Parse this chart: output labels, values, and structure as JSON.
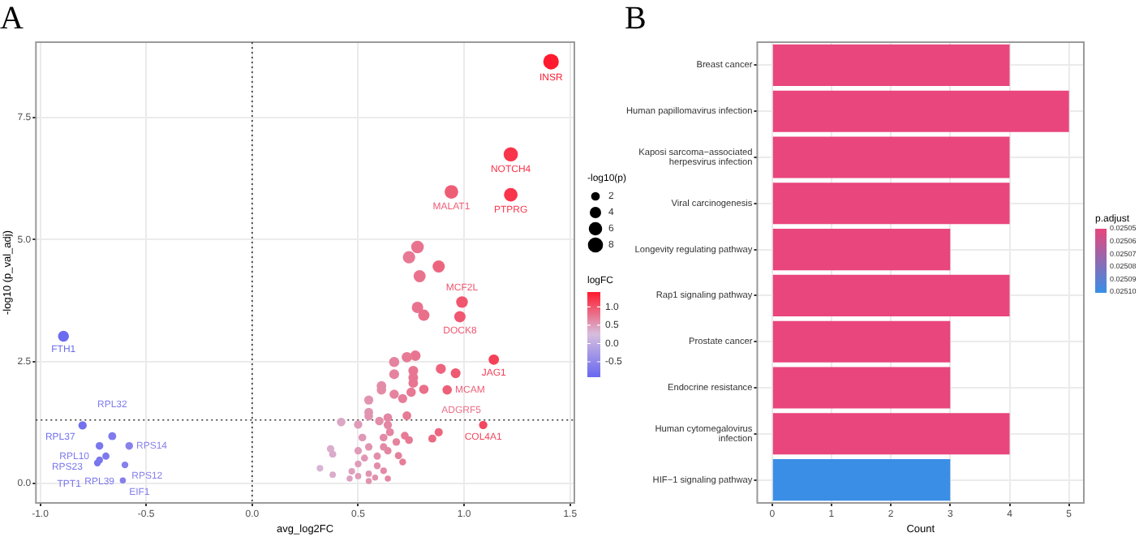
{
  "chart_data": [
    {
      "type": "bubble",
      "title": "A",
      "xlabel": "avg_log2FC",
      "ylabel": "-log10 (p_val_adj)",
      "legend_title": "-log10(p)",
      "clabel": "logFC",
      "x": [
        1.41,
        1.22,
        1.22,
        0.94,
        0.78,
        0.74,
        0.88,
        0.79,
        0.99,
        0.78,
        0.81,
        0.98,
        -0.89,
        1.14,
        0.77,
        0.73,
        0.67,
        0.89,
        0.96,
        0.76,
        0.67,
        0.76,
        0.76,
        0.61,
        0.61,
        0.81,
        0.92,
        0.75,
        0.67,
        0.71,
        0.55,
        0.55,
        0.55,
        0.73,
        0.64,
        0.42,
        0.5,
        -0.8,
        0.6,
        1.09,
        0.88,
        0.85,
        -0.66,
        -0.72,
        -0.69,
        -0.58,
        -0.72,
        -0.73,
        -0.6,
        -0.61,
        0.37,
        0.38,
        0.32,
        0.38,
        0.47,
        0.5,
        0.53,
        0.55,
        0.62,
        0.65,
        0.68,
        0.72,
        0.74,
        0.69,
        0.71,
        0.62,
        0.58,
        0.55,
        0.5,
        0.46,
        0.64,
        0.59,
        0.55,
        0.64,
        0.5,
        0.59,
        0.62,
        0.52,
        0.64
      ],
      "values": [
        8.65,
        6.75,
        5.92,
        5.98,
        4.85,
        4.64,
        4.45,
        4.25,
        3.72,
        3.61,
        3.45,
        3.42,
        3.02,
        2.54,
        2.62,
        2.59,
        2.49,
        2.35,
        2.26,
        2.31,
        2.24,
        2.17,
        2.06,
        2.0,
        1.92,
        1.93,
        1.92,
        1.87,
        1.83,
        1.74,
        1.71,
        1.46,
        1.38,
        1.39,
        1.35,
        1.26,
        1.21,
        1.19,
        1.28,
        1.2,
        1.05,
        0.92,
        0.97,
        0.77,
        0.56,
        0.77,
        0.48,
        0.42,
        0.38,
        0.06,
        0.71,
        0.6,
        0.31,
        0.18,
        0.25,
        0.4,
        0.52,
        0.75,
        0.94,
        1.05,
        0.85,
        0.98,
        0.89,
        0.57,
        0.44,
        0.26,
        0.12,
        0.05,
        0.15,
        0.1,
        0.1,
        0.36,
        0.2,
        0.67,
        0.67,
        0.56,
        0.75,
        0.94,
        1.2
      ],
      "sizes": [
        8.6,
        7,
        6.2,
        6.2,
        5.2,
        5,
        4.8,
        4.6,
        4.3,
        4.1,
        4,
        4,
        3.6,
        3.2,
        3.2,
        3.2,
        3,
        2.9,
        2.8,
        2.8,
        2.8,
        2.7,
        2.6,
        2.6,
        2.5,
        2.5,
        2.5,
        2.4,
        2.4,
        2.3,
        2.3,
        2.1,
        2,
        2,
        2,
        1.9,
        1.8,
        1.8,
        1.9,
        1.8,
        1.7,
        1.6,
        1.6,
        1.4,
        1.2,
        1.4,
        1.1,
        1,
        1,
        0.7,
        1.3,
        1.2,
        0.9,
        0.8,
        0.9,
        1,
        1.1,
        1.3,
        1.5,
        1.6,
        1.4,
        1.5,
        1.5,
        1.2,
        1,
        0.9,
        0.7,
        0.7,
        0.8,
        0.7,
        0.7,
        1,
        0.8,
        1.3,
        1.3,
        1.2,
        1.3,
        1.5,
        1.8
      ],
      "cvalues": [
        1.41,
        1.22,
        1.22,
        0.94,
        0.78,
        0.74,
        0.88,
        0.79,
        0.99,
        0.78,
        0.81,
        0.98,
        -0.89,
        1.14,
        0.77,
        0.73,
        0.67,
        0.89,
        0.96,
        0.76,
        0.67,
        0.76,
        0.76,
        0.61,
        0.61,
        0.81,
        0.92,
        0.75,
        0.67,
        0.71,
        0.55,
        0.55,
        0.55,
        0.73,
        0.64,
        0.42,
        0.5,
        -0.8,
        0.6,
        1.09,
        0.88,
        0.85,
        -0.66,
        -0.72,
        -0.69,
        -0.58,
        -0.72,
        -0.73,
        -0.6,
        -0.61,
        0.37,
        0.38,
        0.32,
        0.38,
        0.47,
        0.5,
        0.53,
        0.55,
        0.62,
        0.65,
        0.68,
        0.72,
        0.74,
        0.69,
        0.71,
        0.62,
        0.58,
        0.55,
        0.5,
        0.46,
        0.64,
        0.59,
        0.55,
        0.64,
        0.5,
        0.59,
        0.62,
        0.52,
        0.64
      ],
      "size_legend": [
        2,
        4,
        6,
        8
      ],
      "clim": [
        -0.9,
        1.41
      ],
      "cticks": [
        -0.5,
        {
          "value": 0,
          "label": "0.0"
        },
        0.5,
        {
          "value": 1,
          "label": "1.0"
        }
      ],
      "xlim": [
        -1.02,
        1.52
      ],
      "ylim": [
        -0.4,
        9.05
      ],
      "xticks": [
        {
          "value": -1,
          "label": "-1.0"
        },
        -0.5,
        {
          "value": 0,
          "label": "0.0"
        },
        0.5,
        {
          "value": 1,
          "label": "1.0"
        },
        1.5
      ],
      "yticks": [
        {
          "value": 0,
          "label": "0.0"
        },
        2.5,
        {
          "value": 5,
          "label": "5.0"
        },
        7.5
      ],
      "grid": true,
      "ref_lines": [
        {
          "axis": "x",
          "value": 0,
          "line_style": "dotted"
        },
        {
          "axis": "y",
          "value": 1.3,
          "line_style": "dotted"
        }
      ],
      "annotations": [
        {
          "text": "INSR",
          "x": 1.41,
          "y": 8.65
        },
        {
          "text": "NOTCH4",
          "x": 1.22,
          "y": 6.75
        },
        {
          "text": "PTPRG",
          "x": 1.22,
          "y": 5.92
        },
        {
          "text": "MALAT1",
          "x": 0.94,
          "y": 5.98
        },
        {
          "text": "MCF2L",
          "x": 0.99,
          "y": 3.72
        },
        {
          "text": "DOCK8",
          "x": 0.98,
          "y": 3.42
        },
        {
          "text": "FTH1",
          "x": -0.89,
          "y": 3.02
        },
        {
          "text": "JAG1",
          "x": 1.14,
          "y": 2.54
        },
        {
          "text": "ADGRF5",
          "x": 0.81,
          "y": 1.93
        },
        {
          "text": "MCAM",
          "x": 0.92,
          "y": 1.92
        },
        {
          "text": "COL4A1",
          "x": 1.09,
          "y": 1.2
        },
        {
          "text": "RPL37",
          "x": -0.8,
          "y": 1.19
        },
        {
          "text": "RPL32",
          "x": -0.66,
          "y": 0.97
        },
        {
          "text": "RPS23",
          "x": -0.72,
          "y": 0.77
        },
        {
          "text": "RPL10",
          "x": -0.69,
          "y": 0.56
        },
        {
          "text": "RPS14",
          "x": -0.58,
          "y": 0.77
        },
        {
          "text": "RPL39",
          "x": -0.72,
          "y": 0.48
        },
        {
          "text": "TPT1",
          "x": -0.73,
          "y": 0.42
        },
        {
          "text": "RPS12",
          "x": -0.6,
          "y": 0.38
        },
        {
          "text": "EIF1",
          "x": -0.61,
          "y": 0.06
        }
      ]
    },
    {
      "type": "bar",
      "orientation": "horizontal",
      "title": "B",
      "xlabel": "Count",
      "clabel": "p.adjust",
      "categories": [
        "Breast cancer",
        "Human papillomavirus infection",
        "Kaposi sarcoma−associated\nherpesvirus infection",
        "Viral carcinogenesis",
        "Longevity regulating pathway",
        "Rap1 signaling pathway",
        "Prostate cancer",
        "Endocrine resistance",
        "Human cytomegalovirus\ninfection",
        "HIF−1 signaling pathway"
      ],
      "values": [
        4,
        5,
        4,
        4,
        3,
        4,
        3,
        3,
        4,
        3
      ],
      "colors": [
        "#e8467c",
        "#e8467c",
        "#e8467c",
        "#e8467c",
        "#e8467c",
        "#e8467c",
        "#e8467c",
        "#e8467c",
        "#e8467c",
        "#3a8ee6"
      ],
      "xlim": [
        -0.25,
        5.25
      ],
      "xticks": [
        0,
        1,
        2,
        3,
        4,
        5
      ],
      "clim": [
        0.02505,
        0.0251
      ],
      "cticks": [
        0.02505,
        0.02506,
        0.02507,
        0.02508,
        0.02509,
        {
          "value": 0.0251,
          "label": "0.02510"
        }
      ],
      "grid": true
    }
  ]
}
